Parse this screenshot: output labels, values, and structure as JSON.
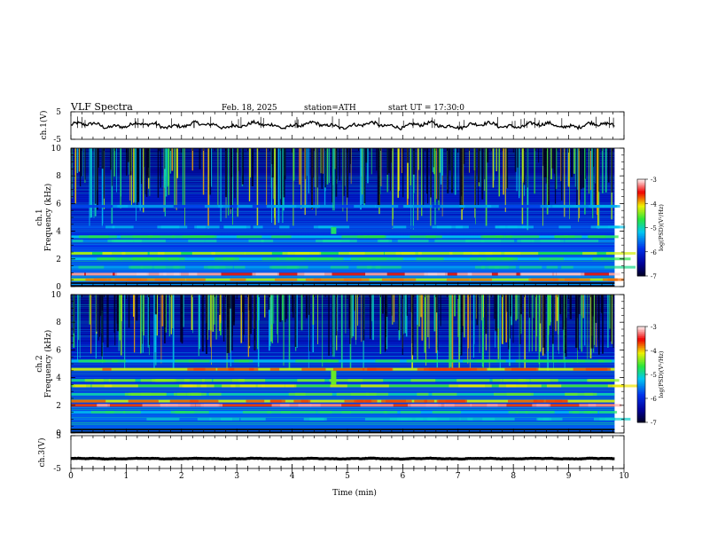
{
  "header": {
    "title": "VLF Spectra",
    "date": "Feb. 18, 2025",
    "station": "station=ATH",
    "start": "start UT =   17:30:0"
  },
  "chart_data": {
    "type": "heatmap",
    "x_axis": {
      "label": "Time (min)",
      "range": [
        0,
        10
      ],
      "ticks": [
        0,
        1,
        2,
        3,
        4,
        5,
        6,
        7,
        8,
        9,
        10
      ],
      "data_end": 9.83
    },
    "panels": [
      {
        "id": "ch1-waveform",
        "ylabel": "ch.1(V)",
        "ylim": [
          -5,
          5
        ],
        "yticks": [
          5,
          -5
        ],
        "trace_level": 0.1,
        "trace_color": "#000000"
      },
      {
        "id": "ch1-spectrogram",
        "ylabel_top": "ch.1",
        "ylabel": "Frequency (kHz)",
        "ylim": [
          0,
          10
        ],
        "yticks": [
          0,
          2,
          4,
          6,
          8,
          10
        ],
        "colorbar": {
          "label": "log(PSD)(V²/Hz)",
          "range": [
            -7,
            -3
          ],
          "ticks": [
            -3,
            -4,
            -5,
            -6,
            -7
          ]
        },
        "bands": [
          {
            "freq_khz": 0.5,
            "level": -4.3
          },
          {
            "freq_khz": 0.9,
            "level": -3.6
          },
          {
            "freq_khz": 1.4,
            "level": -5.4
          },
          {
            "freq_khz": 2.0,
            "level": -5.2
          },
          {
            "freq_khz": 2.4,
            "level": -4.7
          },
          {
            "freq_khz": 3.3,
            "level": -5.5
          },
          {
            "freq_khz": 3.6,
            "level": -5.2
          },
          {
            "freq_khz": 4.3,
            "level": -5.7
          },
          {
            "freq_khz": 5.8,
            "level": -5.8
          }
        ],
        "events": [
          {
            "time_min": 4.75,
            "freq_range_khz": [
              3.8,
              4.3
            ],
            "level": -4.8
          }
        ]
      },
      {
        "id": "ch2-spectrogram",
        "ylabel_top": "ch.2",
        "ylabel": "Frequency (kHz)",
        "ylim": [
          0,
          10
        ],
        "yticks": [
          0,
          2,
          4,
          6,
          8,
          10
        ],
        "colorbar": {
          "label": "log(PSD)(V²/Hz)",
          "range": [
            -7,
            -3
          ],
          "ticks": [
            -3,
            -4,
            -5,
            -6,
            -7
          ]
        },
        "bands": [
          {
            "freq_khz": 1.0,
            "level": -5.6
          },
          {
            "freq_khz": 1.5,
            "level": -5.3
          },
          {
            "freq_khz": 2.0,
            "level": -3.7
          },
          {
            "freq_khz": 2.3,
            "level": -4.2
          },
          {
            "freq_khz": 2.8,
            "level": -5.0
          },
          {
            "freq_khz": 3.4,
            "level": -4.6
          },
          {
            "freq_khz": 3.8,
            "level": -4.9
          },
          {
            "freq_khz": 4.6,
            "level": -4.2
          },
          {
            "freq_khz": 5.2,
            "level": -5.2
          }
        ],
        "events": [
          {
            "time_min": 4.75,
            "freq_range_khz": [
              3.5,
              4.5
            ],
            "level": -4.5
          }
        ]
      },
      {
        "id": "ch3-waveform",
        "ylabel": "ch.3(V)",
        "ylim": [
          -5,
          5
        ],
        "yticks": [
          5,
          -5
        ],
        "trace_level": -2,
        "trace_color": "#000000"
      }
    ]
  }
}
